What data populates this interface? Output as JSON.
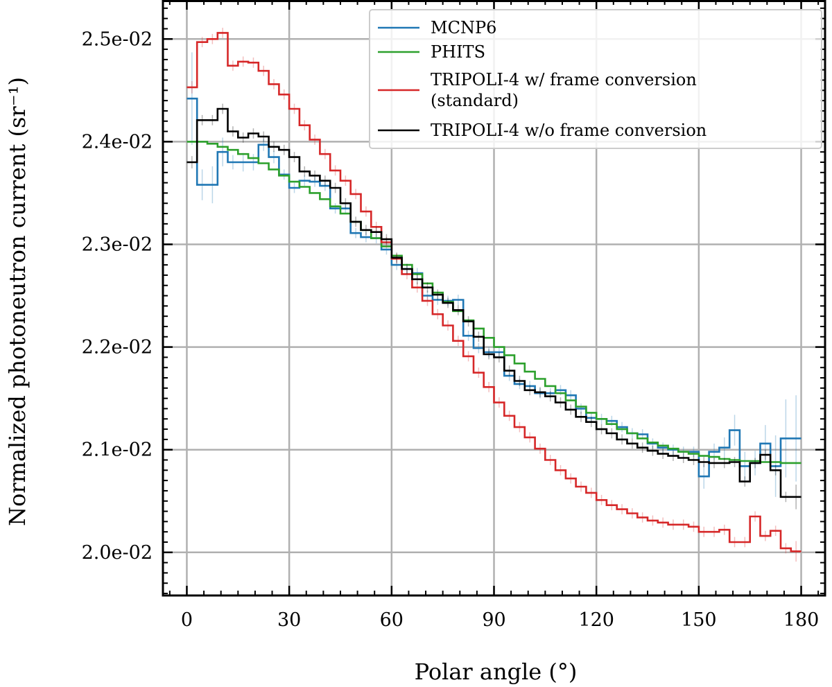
{
  "chart_data": {
    "type": "line",
    "style": "step",
    "xlabel": "Polar angle (°)",
    "ylabel": "Normalized photoneutron current (sr⁻¹)",
    "xlim": [
      -7,
      187
    ],
    "ylim": [
      0.01958,
      0.02538
    ],
    "xticks": [
      0,
      30,
      60,
      90,
      120,
      150,
      180
    ],
    "xtick_labels": [
      "0",
      "30",
      "60",
      "90",
      "120",
      "150",
      "180"
    ],
    "yticks": [
      0.02,
      0.021,
      0.022,
      0.023,
      0.024,
      0.025
    ],
    "ytick_labels": [
      "2.0e-02",
      "2.1e-02",
      "2.2e-02",
      "2.3e-02",
      "2.4e-02",
      "2.5e-02"
    ],
    "grid": true,
    "legend_position": "top-right",
    "bin_edges": [
      0,
      3,
      6,
      9,
      12,
      15,
      18,
      21,
      24,
      27,
      30,
      33,
      36,
      39,
      42,
      45,
      48,
      51,
      54,
      57,
      60,
      63,
      66,
      69,
      72,
      75,
      78,
      81,
      84,
      87,
      90,
      93,
      96,
      99,
      102,
      105,
      108,
      111,
      114,
      117,
      120,
      123,
      126,
      129,
      132,
      135,
      138,
      141,
      144,
      147,
      150,
      153,
      156,
      159,
      162,
      165,
      168,
      171,
      174,
      177,
      180
    ],
    "series": [
      {
        "name": "MCNP6",
        "color": "#1f77b4",
        "values": [
          0.02442,
          0.02358,
          0.02358,
          0.0239,
          0.0238,
          0.0238,
          0.0238,
          0.02397,
          0.02385,
          0.02368,
          0.02355,
          0.02362,
          0.02361,
          0.02357,
          0.02335,
          0.02335,
          0.02311,
          0.02307,
          0.02306,
          0.02295,
          0.0228,
          0.02276,
          0.02272,
          0.0225,
          0.02246,
          0.02245,
          0.02246,
          0.02211,
          0.02199,
          0.02195,
          0.02195,
          0.02172,
          0.02164,
          0.02162,
          0.02155,
          0.02155,
          0.02158,
          0.02153,
          0.0214,
          0.02131,
          0.0213,
          0.02128,
          0.02122,
          0.02116,
          0.02115,
          0.02106,
          0.02102,
          0.021,
          0.02098,
          0.02098,
          0.02074,
          0.02098,
          0.02102,
          0.02119,
          0.02084,
          0.02087,
          0.02106,
          0.02084,
          0.02111,
          0.02111
        ],
        "errors": [
          0.00045,
          0.00015,
          0.00018,
          0.00014,
          7e-05,
          9e-05,
          8e-05,
          6e-05,
          6e-05,
          5e-05,
          5e-05,
          5e-05,
          5e-05,
          5e-05,
          5e-05,
          5e-05,
          5e-05,
          5e-05,
          5e-05,
          5e-05,
          5e-05,
          5e-05,
          5e-05,
          5e-05,
          5e-05,
          5e-05,
          5e-05,
          5e-05,
          5e-05,
          5e-05,
          5e-05,
          5e-05,
          5e-05,
          5e-05,
          5e-05,
          5e-05,
          5e-05,
          5e-05,
          5e-05,
          5e-05,
          5e-05,
          5e-05,
          5e-05,
          5e-05,
          5e-05,
          5e-05,
          5e-05,
          5e-05,
          5e-05,
          5e-05,
          0.00012,
          8e-05,
          0.0001,
          0.00015,
          0.00014,
          0.00012,
          0.00018,
          0.0003,
          0.00038,
          0.00042
        ]
      },
      {
        "name": "PHITS",
        "color": "#2ca02c",
        "values": [
          0.024,
          0.024,
          0.02398,
          0.02395,
          0.02392,
          0.02388,
          0.02384,
          0.02379,
          0.02373,
          0.02367,
          0.02361,
          0.02356,
          0.0235,
          0.02344,
          0.02337,
          0.0233,
          0.02322,
          0.02314,
          0.02306,
          0.02298,
          0.02289,
          0.0228,
          0.02271,
          0.02262,
          0.02253,
          0.02244,
          0.02235,
          0.02226,
          0.02218,
          0.02209,
          0.022,
          0.02192,
          0.02184,
          0.02176,
          0.02169,
          0.02162,
          0.02155,
          0.02148,
          0.02142,
          0.02136,
          0.0213,
          0.02125,
          0.0212,
          0.02116,
          0.02111,
          0.02107,
          0.02104,
          0.02101,
          0.02098,
          0.02096,
          0.02094,
          0.02093,
          0.02091,
          0.0209,
          0.02089,
          0.02089,
          0.02088,
          0.02088,
          0.02087,
          0.02087
        ]
      },
      {
        "name": "TRIPOLI-4 w/ frame conversion (standard)",
        "color": "#d62728",
        "values": [
          0.02453,
          0.02497,
          0.025,
          0.02506,
          0.02474,
          0.02478,
          0.02477,
          0.02469,
          0.02456,
          0.02446,
          0.02432,
          0.02416,
          0.02402,
          0.02388,
          0.02372,
          0.02362,
          0.02349,
          0.02332,
          0.02317,
          0.02302,
          0.02286,
          0.02271,
          0.02258,
          0.02245,
          0.02232,
          0.02221,
          0.02206,
          0.02191,
          0.02175,
          0.02161,
          0.02146,
          0.02133,
          0.02122,
          0.02112,
          0.02101,
          0.0209,
          0.0208,
          0.02072,
          0.02064,
          0.02058,
          0.02051,
          0.02046,
          0.02042,
          0.02038,
          0.02034,
          0.02031,
          0.02029,
          0.02027,
          0.02027,
          0.02025,
          0.0202,
          0.0202,
          0.02022,
          0.0201,
          0.0201,
          0.02035,
          0.02016,
          0.02021,
          0.02004,
          0.02001
        ],
        "errors": [
          6e-05,
          5e-05,
          5e-05,
          5e-05,
          5e-05,
          5e-05,
          5e-05,
          5e-05,
          5e-05,
          5e-05,
          5e-05,
          5e-05,
          5e-05,
          5e-05,
          5e-05,
          5e-05,
          5e-05,
          5e-05,
          5e-05,
          5e-05,
          5e-05,
          5e-05,
          5e-05,
          5e-05,
          5e-05,
          5e-05,
          5e-05,
          5e-05,
          5e-05,
          5e-05,
          5e-05,
          5e-05,
          5e-05,
          5e-05,
          5e-05,
          5e-05,
          5e-05,
          5e-05,
          5e-05,
          5e-05,
          5e-05,
          5e-05,
          5e-05,
          5e-05,
          5e-05,
          5e-05,
          5e-05,
          5e-05,
          5e-05,
          5e-05,
          5e-05,
          5e-05,
          5e-05,
          5e-05,
          5e-05,
          5e-05,
          5e-05,
          5e-05,
          5e-05,
          0.0001
        ]
      },
      {
        "name": "TRIPOLI-4 w/o frame conversion",
        "color": "#000000",
        "values": [
          0.0238,
          0.02421,
          0.02421,
          0.02432,
          0.0241,
          0.02404,
          0.02408,
          0.02405,
          0.02395,
          0.02392,
          0.02385,
          0.02371,
          0.02367,
          0.02362,
          0.02355,
          0.0234,
          0.02322,
          0.02314,
          0.02312,
          0.02305,
          0.02287,
          0.02276,
          0.02266,
          0.02258,
          0.02251,
          0.02243,
          0.02236,
          0.02225,
          0.0221,
          0.02193,
          0.0219,
          0.02177,
          0.02167,
          0.02158,
          0.02156,
          0.02152,
          0.02146,
          0.02139,
          0.02132,
          0.02127,
          0.0212,
          0.02116,
          0.0211,
          0.02106,
          0.02102,
          0.02099,
          0.02096,
          0.02094,
          0.02092,
          0.0209,
          0.02088,
          0.02087,
          0.02087,
          0.02088,
          0.02069,
          0.02087,
          0.02095,
          0.0208,
          0.02054,
          0.02054
        ],
        "errors": [
          6e-05,
          5e-05,
          5e-05,
          5e-05,
          5e-05,
          5e-05,
          5e-05,
          5e-05,
          5e-05,
          5e-05,
          5e-05,
          5e-05,
          5e-05,
          5e-05,
          5e-05,
          5e-05,
          5e-05,
          5e-05,
          5e-05,
          5e-05,
          5e-05,
          5e-05,
          5e-05,
          5e-05,
          5e-05,
          5e-05,
          5e-05,
          5e-05,
          5e-05,
          5e-05,
          5e-05,
          5e-05,
          5e-05,
          5e-05,
          5e-05,
          5e-05,
          5e-05,
          5e-05,
          5e-05,
          5e-05,
          5e-05,
          5e-05,
          5e-05,
          5e-05,
          5e-05,
          5e-05,
          5e-05,
          5e-05,
          5e-05,
          5e-05,
          5e-05,
          5e-05,
          5e-05,
          5e-05,
          5e-05,
          5e-05,
          5e-05,
          5e-05,
          5e-05,
          0.00012
        ]
      }
    ],
    "legend": [
      {
        "lines": [
          "MCNP6"
        ],
        "color": "#1f77b4"
      },
      {
        "lines": [
          "PHITS"
        ],
        "color": "#2ca02c"
      },
      {
        "lines": [
          "TRIPOLI-4 w/ frame conversion",
          "(standard)"
        ],
        "color": "#d62728"
      },
      {
        "lines": [
          "TRIPOLI-4 w/o frame conversion"
        ],
        "color": "#000000"
      }
    ]
  }
}
